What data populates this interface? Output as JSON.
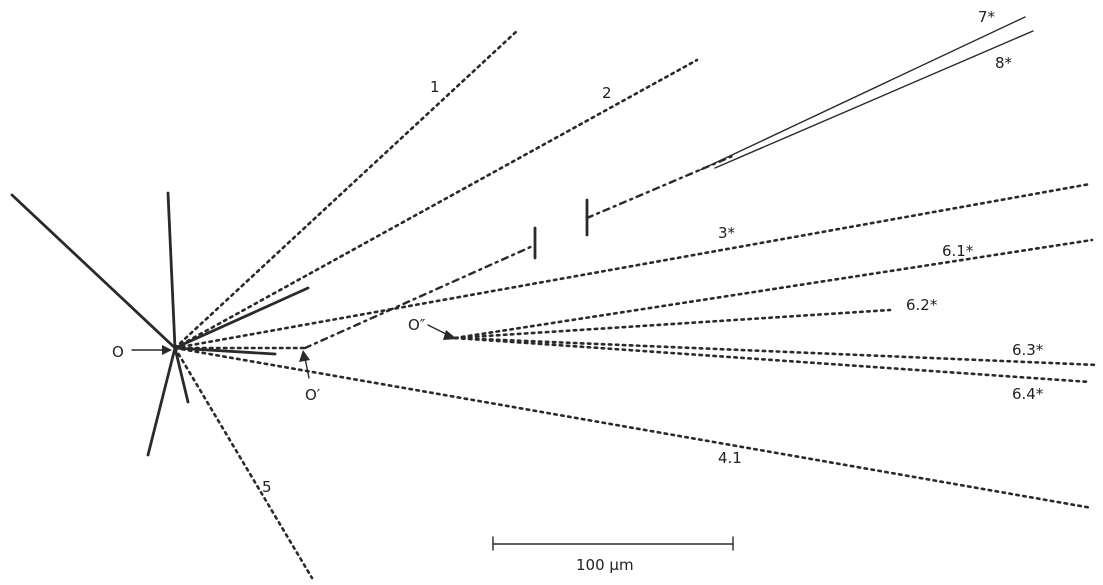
{
  "labels": {
    "track_1": "1",
    "track_2": "2",
    "track_3": "3*",
    "track_4_1": "4.1",
    "track_5": "5",
    "track_6_1": "6.1*",
    "track_6_2": "6.2*",
    "track_6_3": "6.3*",
    "track_6_4": "6.4*",
    "track_7": "7*",
    "track_8": "8*",
    "vertex_O": "O",
    "vertex_O_prime": "O′",
    "vertex_O_double_prime": "O″"
  },
  "scale_bar": {
    "label": "100 μm"
  }
}
